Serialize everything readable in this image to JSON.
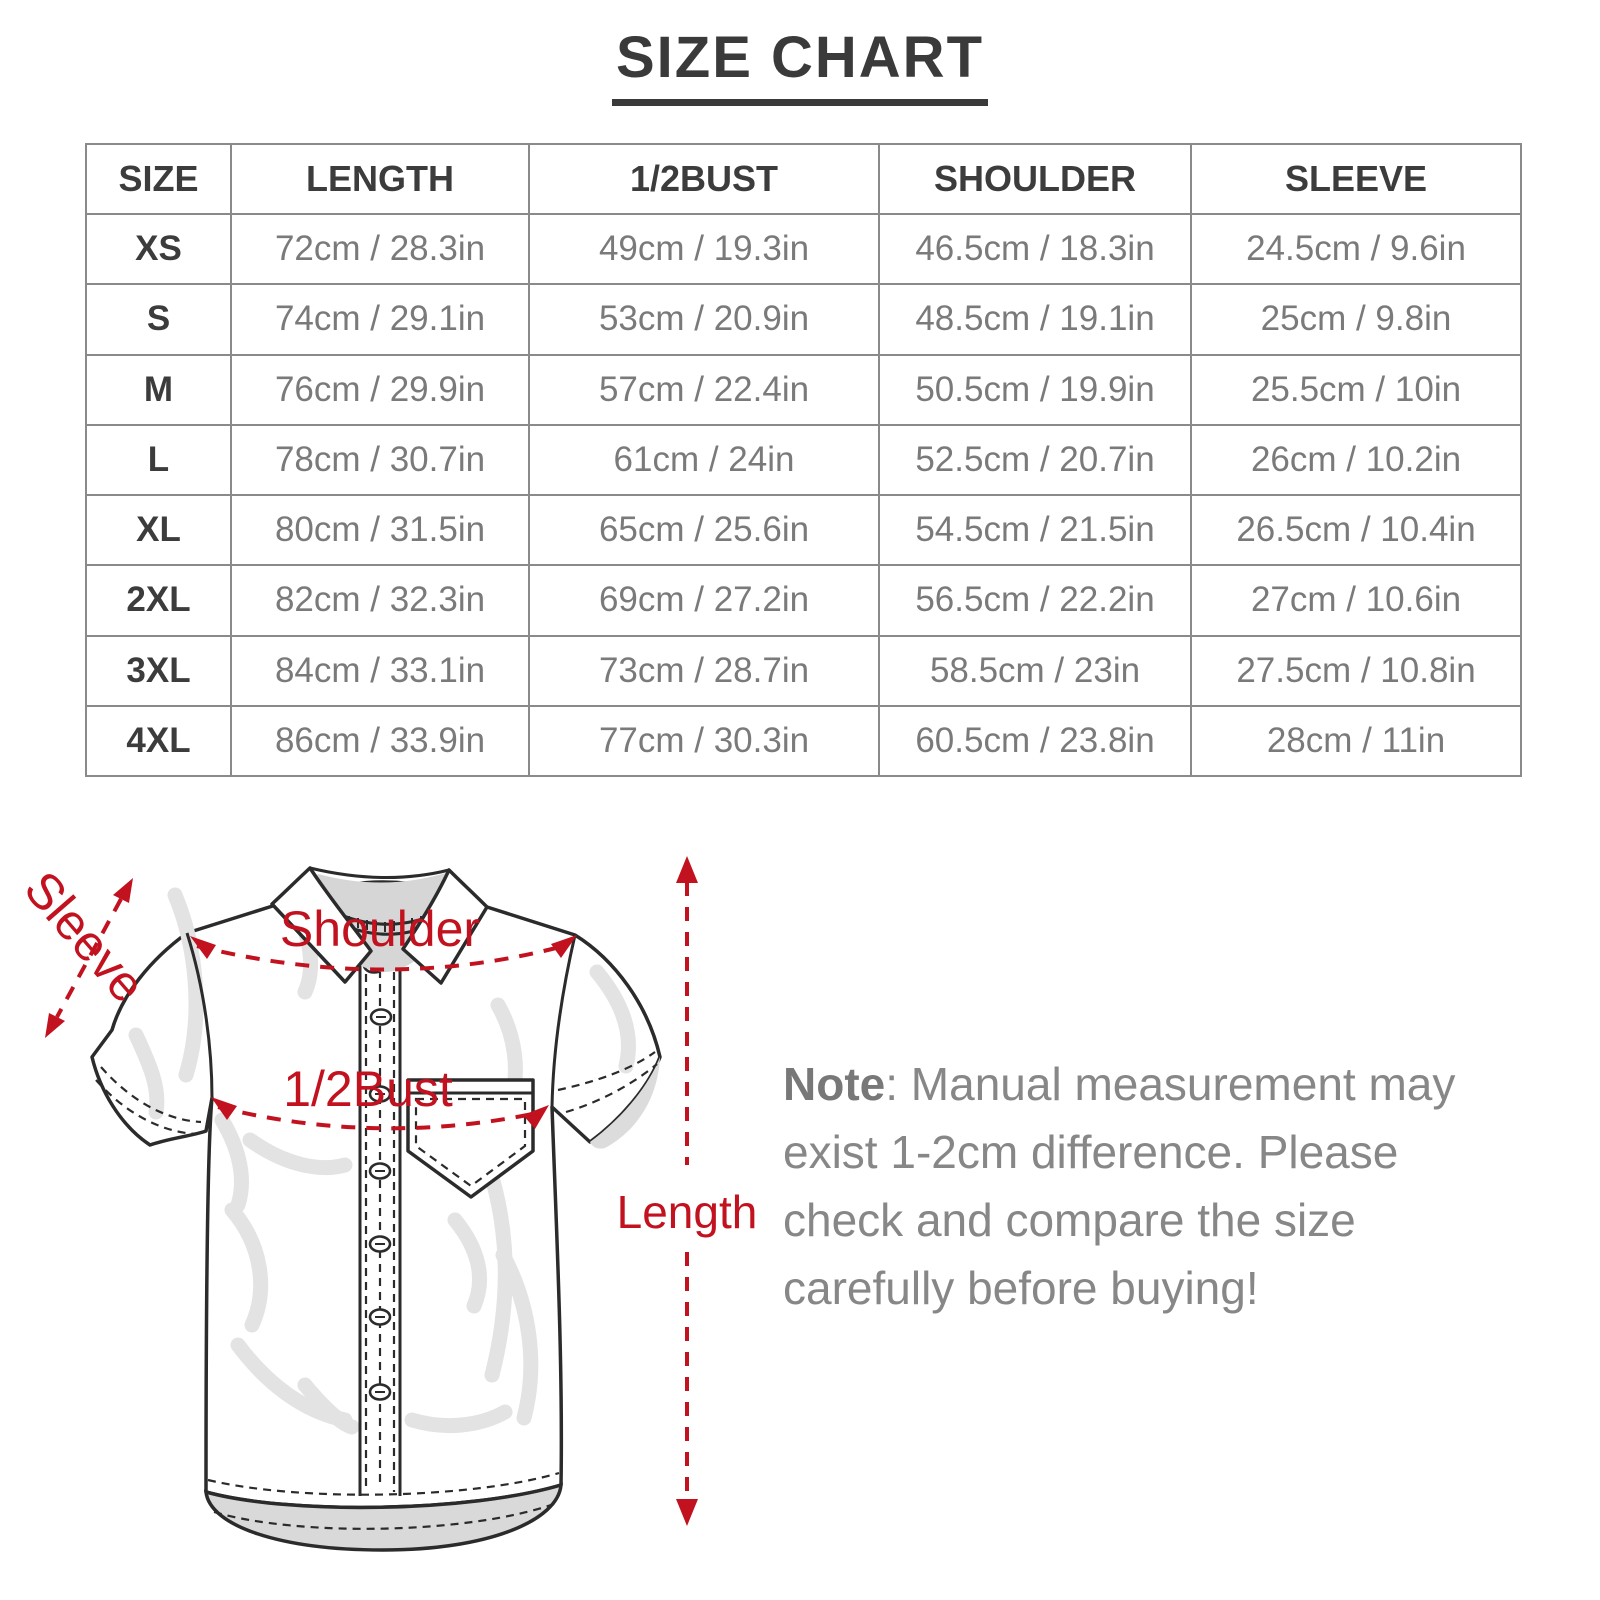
{
  "title": "SIZE CHART",
  "table": {
    "columns": [
      "SIZE",
      "LENGTH",
      "1/2BUST",
      "SHOULDER",
      "SLEEVE"
    ],
    "rows": [
      {
        "size": "XS",
        "values": [
          "72cm / 28.3in",
          "49cm / 19.3in",
          "46.5cm / 18.3in",
          "24.5cm / 9.6in"
        ]
      },
      {
        "size": "S",
        "values": [
          "74cm / 29.1in",
          "53cm / 20.9in",
          "48.5cm / 19.1in",
          "25cm / 9.8in"
        ]
      },
      {
        "size": "M",
        "values": [
          "76cm / 29.9in",
          "57cm / 22.4in",
          "50.5cm / 19.9in",
          "25.5cm / 10in"
        ]
      },
      {
        "size": "L",
        "values": [
          "78cm / 30.7in",
          "61cm / 24in",
          "52.5cm / 20.7in",
          "26cm / 10.2in"
        ]
      },
      {
        "size": "XL",
        "values": [
          "80cm / 31.5in",
          "65cm / 25.6in",
          "54.5cm / 21.5in",
          "26.5cm / 10.4in"
        ]
      },
      {
        "size": "2XL",
        "values": [
          "82cm / 32.3in",
          "69cm / 27.2in",
          "56.5cm / 22.2in",
          "27cm / 10.6in"
        ]
      },
      {
        "size": "3XL",
        "values": [
          "84cm / 33.1in",
          "73cm / 28.7in",
          "58.5cm / 23in",
          "27.5cm / 10.8in"
        ]
      },
      {
        "size": "4XL",
        "values": [
          "86cm / 33.9in",
          "77cm / 30.3in",
          "60.5cm / 23.8in",
          "28cm / 11in"
        ]
      }
    ]
  },
  "diagram": {
    "labels": {
      "sleeve": "Sleeve",
      "shoulder": "Shoulder",
      "half_bust": "1/2Bust",
      "length": "Length"
    },
    "annotation_color": "#c2121f"
  },
  "note": {
    "label": "Note",
    "text": ": Manual measurement may exist 1-2cm difference. Please check and compare the size carefully before buying!"
  },
  "colors": {
    "accent_red": "#c2121f",
    "heading_text": "#3a3a3a",
    "table_value_text": "#7a7a7a",
    "table_border": "#8a8a8a",
    "note_text": "#878787"
  }
}
